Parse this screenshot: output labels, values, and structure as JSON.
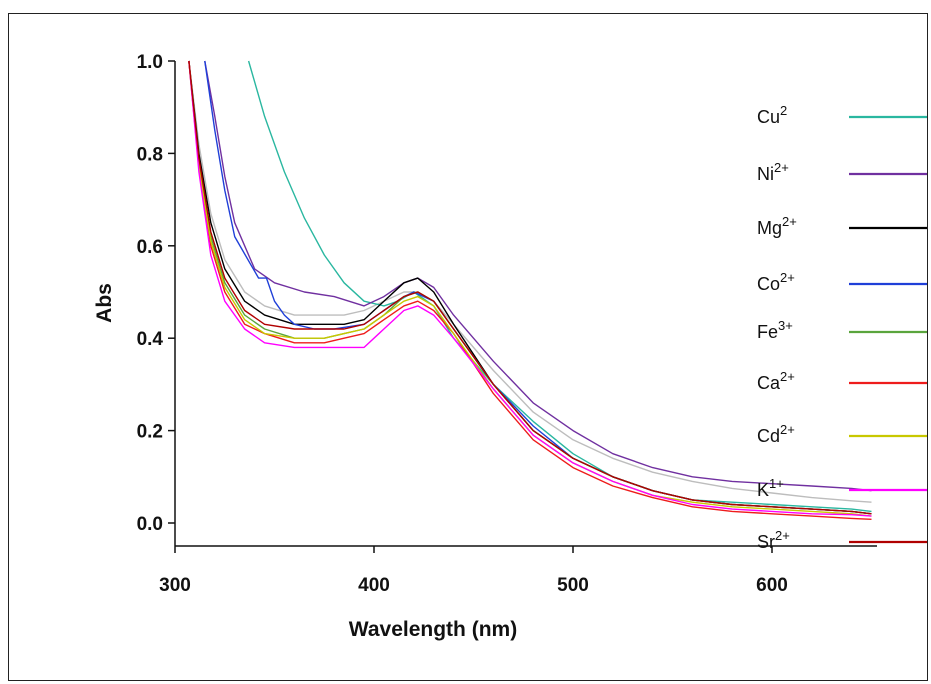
{
  "chart_data": {
    "type": "line",
    "xlabel": "Wavelength (nm)",
    "ylabel": "Abs",
    "xlim": [
      300,
      650
    ],
    "ylim": [
      -0.05,
      1.0
    ],
    "xticks": [
      "300",
      "400",
      "500",
      "600"
    ],
    "yticks": [
      "0.0",
      "0.2",
      "0.4",
      "0.6",
      "0.8",
      "1.0"
    ],
    "legend": "right",
    "series": [
      {
        "base": "Cu",
        "sup": "2",
        "color": "#2ab7a0",
        "x": [
          337,
          345,
          355,
          365,
          375,
          385,
          395,
          405,
          412,
          420,
          430,
          440,
          460,
          480,
          500,
          520,
          540,
          560,
          580,
          600,
          620,
          640,
          650
        ],
        "y": [
          1.0,
          0.88,
          0.76,
          0.66,
          0.58,
          0.52,
          0.48,
          0.47,
          0.48,
          0.5,
          0.47,
          0.4,
          0.3,
          0.22,
          0.15,
          0.1,
          0.07,
          0.05,
          0.045,
          0.04,
          0.035,
          0.03,
          0.025
        ]
      },
      {
        "base": "Ni",
        "sup": "2+",
        "color": "#7030a0",
        "x": [
          315,
          320,
          325,
          330,
          340,
          350,
          365,
          380,
          395,
          405,
          415,
          422,
          430,
          440,
          460,
          480,
          500,
          520,
          540,
          560,
          580,
          600,
          620,
          640,
          650
        ],
        "y": [
          1.0,
          0.88,
          0.75,
          0.65,
          0.55,
          0.52,
          0.5,
          0.49,
          0.47,
          0.49,
          0.52,
          0.53,
          0.51,
          0.45,
          0.35,
          0.26,
          0.2,
          0.15,
          0.12,
          0.1,
          0.09,
          0.085,
          0.08,
          0.075,
          0.07
        ]
      },
      {
        "base": "Mg",
        "sup": "2+",
        "color": "#000000",
        "x": [
          307,
          312,
          318,
          325,
          335,
          345,
          360,
          375,
          385,
          395,
          405,
          415,
          422,
          430,
          440,
          460,
          480,
          500,
          520,
          540,
          560,
          580,
          600,
          620,
          640,
          650
        ],
        "y": [
          1.0,
          0.8,
          0.65,
          0.55,
          0.48,
          0.45,
          0.43,
          0.43,
          0.43,
          0.44,
          0.48,
          0.52,
          0.53,
          0.5,
          0.43,
          0.3,
          0.2,
          0.14,
          0.1,
          0.07,
          0.05,
          0.04,
          0.035,
          0.03,
          0.025,
          0.02
        ]
      },
      {
        "base": "Co",
        "sup": "2+",
        "color": "#1f3fd8",
        "x": [
          315,
          320,
          325,
          330,
          338,
          342,
          346,
          350,
          355,
          360,
          370,
          380,
          395,
          405,
          415,
          420,
          430,
          440,
          460,
          480,
          500,
          520,
          540,
          560,
          580,
          600,
          620,
          640,
          650
        ],
        "y": [
          1.0,
          0.85,
          0.72,
          0.62,
          0.56,
          0.53,
          0.53,
          0.48,
          0.45,
          0.43,
          0.42,
          0.42,
          0.43,
          0.46,
          0.49,
          0.5,
          0.48,
          0.42,
          0.3,
          0.21,
          0.14,
          0.1,
          0.07,
          0.05,
          0.04,
          0.035,
          0.03,
          0.025,
          0.02
        ]
      },
      {
        "base": "Fe",
        "sup": "3+",
        "color": "#5aa53d",
        "x": [
          307,
          312,
          318,
          325,
          335,
          345,
          360,
          375,
          385,
          395,
          405,
          415,
          422,
          430,
          440,
          460,
          480,
          500,
          520,
          540,
          560,
          580,
          600,
          620,
          640,
          650
        ],
        "y": [
          1.0,
          0.78,
          0.62,
          0.52,
          0.45,
          0.42,
          0.4,
          0.4,
          0.41,
          0.42,
          0.45,
          0.49,
          0.5,
          0.48,
          0.42,
          0.3,
          0.2,
          0.14,
          0.1,
          0.07,
          0.05,
          0.04,
          0.035,
          0.03,
          0.025,
          0.02
        ]
      },
      {
        "base": "Ca",
        "sup": "2+",
        "color": "#ee1c1c",
        "x": [
          307,
          312,
          318,
          325,
          335,
          345,
          360,
          375,
          385,
          395,
          405,
          415,
          422,
          430,
          440,
          460,
          480,
          500,
          520,
          540,
          560,
          580,
          600,
          620,
          640,
          650
        ],
        "y": [
          1.0,
          0.77,
          0.6,
          0.5,
          0.43,
          0.41,
          0.39,
          0.39,
          0.4,
          0.41,
          0.44,
          0.47,
          0.48,
          0.46,
          0.41,
          0.28,
          0.18,
          0.12,
          0.08,
          0.055,
          0.035,
          0.025,
          0.02,
          0.015,
          0.01,
          0.008
        ]
      },
      {
        "base": "Cd",
        "sup": "2+",
        "color": "#c8c800",
        "x": [
          307,
          312,
          318,
          325,
          335,
          345,
          360,
          375,
          385,
          395,
          405,
          415,
          422,
          430,
          440,
          460,
          480,
          500,
          520,
          540,
          560,
          580,
          600,
          620,
          640,
          650
        ],
        "y": [
          1.0,
          0.77,
          0.61,
          0.51,
          0.44,
          0.41,
          0.4,
          0.4,
          0.41,
          0.42,
          0.45,
          0.48,
          0.49,
          0.47,
          0.41,
          0.29,
          0.19,
          0.13,
          0.09,
          0.06,
          0.045,
          0.035,
          0.03,
          0.025,
          0.02,
          0.015
        ]
      },
      {
        "base": "K",
        "sup": "1+",
        "color": "#ff00ff",
        "x": [
          307,
          312,
          318,
          325,
          335,
          345,
          360,
          375,
          385,
          395,
          405,
          415,
          422,
          430,
          440,
          460,
          480,
          500,
          520,
          540,
          560,
          580,
          600,
          620,
          640,
          650
        ],
        "y": [
          1.0,
          0.76,
          0.58,
          0.48,
          0.42,
          0.39,
          0.38,
          0.38,
          0.38,
          0.38,
          0.42,
          0.46,
          0.47,
          0.45,
          0.4,
          0.29,
          0.19,
          0.13,
          0.09,
          0.06,
          0.04,
          0.03,
          0.025,
          0.02,
          0.018,
          0.015
        ]
      },
      {
        "base": "Sr",
        "sup": "2+",
        "color": "#b00000",
        "x": [
          307,
          312,
          318,
          325,
          335,
          345,
          360,
          375,
          385,
          395,
          405,
          415,
          422,
          430,
          440,
          460,
          480,
          500,
          520,
          540,
          560,
          580,
          600,
          620,
          640,
          650
        ],
        "y": [
          1.0,
          0.79,
          0.63,
          0.53,
          0.46,
          0.43,
          0.42,
          0.42,
          0.42,
          0.43,
          0.46,
          0.49,
          0.5,
          0.48,
          0.42,
          0.3,
          0.2,
          0.14,
          0.1,
          0.07,
          0.05,
          0.04,
          0.035,
          0.03,
          0.025,
          0.02
        ]
      },
      {
        "base": "",
        "sup": "",
        "color": "#bdbdbd",
        "x": [
          307,
          312,
          318,
          325,
          335,
          345,
          360,
          375,
          385,
          395,
          405,
          415,
          422,
          430,
          440,
          460,
          480,
          500,
          520,
          540,
          560,
          580,
          600,
          620,
          640,
          650
        ],
        "y": [
          1.0,
          0.82,
          0.67,
          0.57,
          0.5,
          0.47,
          0.45,
          0.45,
          0.45,
          0.46,
          0.48,
          0.5,
          0.5,
          0.48,
          0.43,
          0.33,
          0.24,
          0.18,
          0.14,
          0.11,
          0.09,
          0.075,
          0.065,
          0.055,
          0.048,
          0.045
        ]
      }
    ]
  }
}
